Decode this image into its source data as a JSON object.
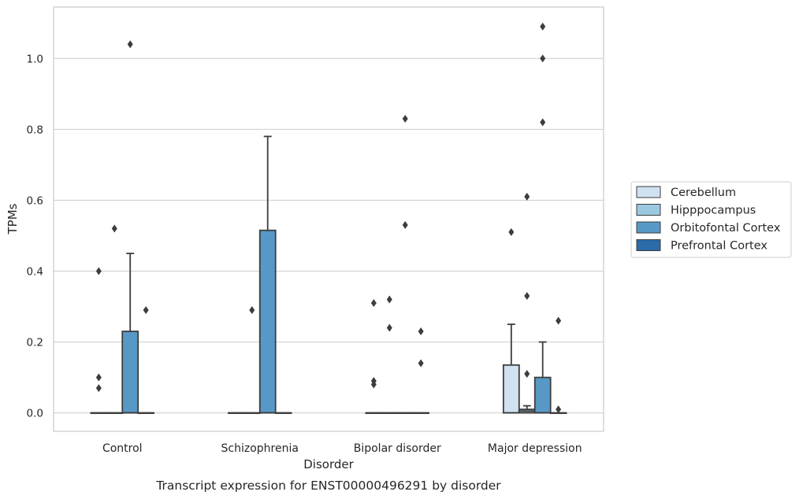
{
  "chart_data": {
    "type": "box",
    "title": "",
    "caption": "Transcript expression for ENST00000496291 by disorder",
    "xlabel": "Disorder",
    "ylabel": "TPMs",
    "ylim": [
      -0.052,
      1.145
    ],
    "yticks": [
      0.0,
      0.2,
      0.4,
      0.6,
      0.8,
      1.0
    ],
    "ytick_labels": [
      "0.0",
      "0.2",
      "0.4",
      "0.6",
      "0.8",
      "1.0"
    ],
    "grid": "horizontal",
    "legend_position": "right",
    "categories": [
      "Control",
      "Schizophrenia",
      "Bipolar disorder",
      "Major depression"
    ],
    "series": [
      {
        "name": "Cerebellum",
        "color": "#d0e1f1",
        "boxes": [
          {
            "q1": 0,
            "median": 0,
            "q3": 0,
            "whislo": 0,
            "whishi": 0,
            "outliers": [
              0.4,
              0.1,
              0.07
            ]
          },
          {
            "q1": 0,
            "median": 0,
            "q3": 0,
            "whislo": 0,
            "whishi": 0,
            "outliers": []
          },
          {
            "q1": 0,
            "median": 0,
            "q3": 0,
            "whislo": 0,
            "whishi": 0,
            "outliers": [
              0.31,
              0.09,
              0.08
            ]
          },
          {
            "q1": 0,
            "median": 0,
            "q3": 0.135,
            "whislo": 0,
            "whishi": 0.25,
            "outliers": [
              0.51
            ]
          }
        ]
      },
      {
        "name": "Hipppocampus",
        "color": "#9ac8e0",
        "boxes": [
          {
            "q1": 0,
            "median": 0,
            "q3": 0,
            "whislo": 0,
            "whishi": 0,
            "outliers": [
              0.52
            ]
          },
          {
            "q1": 0,
            "median": 0,
            "q3": 0,
            "whislo": 0,
            "whishi": 0,
            "outliers": [
              0.29
            ]
          },
          {
            "q1": 0,
            "median": 0,
            "q3": 0,
            "whislo": 0,
            "whishi": 0,
            "outliers": [
              0.32,
              0.24
            ]
          },
          {
            "q1": 0,
            "median": 0.005,
            "q3": 0.01,
            "whislo": 0,
            "whishi": 0.02,
            "outliers": [
              0.61,
              0.33,
              0.11
            ]
          }
        ]
      },
      {
        "name": "Orbitofontal Cortex",
        "color": "#5799c6",
        "boxes": [
          {
            "q1": 0,
            "median": 0,
            "q3": 0.23,
            "whislo": 0,
            "whishi": 0.45,
            "outliers": [
              1.04
            ]
          },
          {
            "q1": 0,
            "median": 0,
            "q3": 0.515,
            "whislo": 0,
            "whishi": 0.78,
            "outliers": []
          },
          {
            "q1": 0,
            "median": 0,
            "q3": 0,
            "whislo": 0,
            "whishi": 0,
            "outliers": [
              0.83,
              0.53
            ]
          },
          {
            "q1": 0,
            "median": 0,
            "q3": 0.1,
            "whislo": 0,
            "whishi": 0.2,
            "outliers": [
              1.09,
              1.0,
              0.82
            ]
          }
        ]
      },
      {
        "name": "Prefrontal Cortex",
        "color": "#2b6ba9",
        "boxes": [
          {
            "q1": 0,
            "median": 0,
            "q3": 0,
            "whislo": 0,
            "whishi": 0,
            "outliers": [
              0.29
            ]
          },
          {
            "q1": 0,
            "median": 0,
            "q3": 0,
            "whislo": 0,
            "whishi": 0,
            "outliers": []
          },
          {
            "q1": 0,
            "median": 0,
            "q3": 0,
            "whislo": 0,
            "whishi": 0,
            "outliers": [
              0.23,
              0.14
            ]
          },
          {
            "q1": 0,
            "median": 0,
            "q3": 0,
            "whislo": 0,
            "whishi": 0,
            "outliers": [
              0.26,
              0.01
            ]
          }
        ]
      }
    ]
  }
}
